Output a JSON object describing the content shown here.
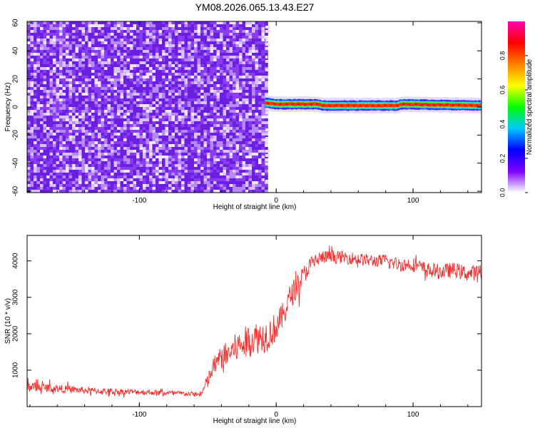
{
  "title": "YM08.2026.065.13.43.E27",
  "chart_data": [
    {
      "type": "heatmap",
      "xlabel": "Height of straight line (km)",
      "ylabel": "Frequency (Hz)",
      "xlim": [
        -182,
        150
      ],
      "ylim": [
        -61,
        61
      ],
      "xticks": [
        -100,
        0,
        100
      ],
      "xtick_labels": [
        "-100",
        "0",
        "100"
      ],
      "yticks": [
        -60,
        -40,
        -20,
        0,
        20,
        40,
        60
      ],
      "ytick_labels": [
        "-60",
        "-40",
        "-20",
        "0",
        "20",
        "40",
        "60"
      ],
      "noise_region_x": [
        -182,
        -8
      ],
      "signal_track": [
        {
          "x": -8,
          "y": 3
        },
        {
          "x": 0,
          "y": 2
        },
        {
          "x": 30,
          "y": 2
        },
        {
          "x": 35,
          "y": 1
        },
        {
          "x": 88,
          "y": 1
        },
        {
          "x": 92,
          "y": 2
        },
        {
          "x": 150,
          "y": 1
        }
      ],
      "colorbar": {
        "label": "Normalized spectral amplitude",
        "range": [
          0,
          1
        ],
        "ticks": [
          0.0,
          0.2,
          0.4,
          0.6,
          0.8
        ],
        "tick_labels": [
          "0.0",
          "0.2",
          "0.4",
          "0.6",
          "0.8"
        ],
        "colors": [
          "#ffffff",
          "#7f00ff",
          "#0000ff",
          "#00c8ff",
          "#00ff00",
          "#ffff00",
          "#ff8000",
          "#ff0000",
          "#ff00b0"
        ]
      },
      "grid": false
    },
    {
      "type": "line",
      "xlabel": "Height of straight line (km)",
      "ylabel": "SNR (10 * v/v)",
      "xlim": [
        -182,
        150
      ],
      "ylim": [
        0,
        4700
      ],
      "xticks": [
        -100,
        0,
        100
      ],
      "xtick_labels": [
        "-100",
        "0",
        "100"
      ],
      "yticks": [
        1000,
        2000,
        3000,
        4000
      ],
      "ytick_labels": [
        "1000",
        "2000",
        "3000",
        "4000"
      ],
      "color": "#f03030",
      "series": [
        {
          "x": [
            -182,
            -170,
            -150,
            -130,
            -110,
            -90,
            -70,
            -55,
            -50,
            -45,
            -40,
            -35,
            -30,
            -25,
            -20,
            -15,
            -10,
            -5,
            0,
            5,
            10,
            15,
            20,
            25,
            30,
            35,
            40,
            50,
            60,
            70,
            80,
            90,
            100,
            110,
            120,
            130,
            140,
            150
          ],
          "y": [
            550,
            520,
            470,
            420,
            410,
            390,
            360,
            330,
            700,
            1150,
            1350,
            1450,
            1600,
            1700,
            1800,
            1900,
            1900,
            2000,
            2200,
            2500,
            3000,
            3300,
            3600,
            3900,
            4050,
            4100,
            4100,
            4100,
            4050,
            4000,
            4000,
            3900,
            3900,
            3750,
            3700,
            3750,
            3650,
            3700
          ],
          "spread": [
            300,
            250,
            200,
            180,
            160,
            150,
            140,
            130,
            450,
            550,
            650,
            750,
            800,
            900,
            900,
            900,
            900,
            900,
            800,
            750,
            700,
            650,
            550,
            450,
            400,
            380,
            350,
            350,
            350,
            350,
            350,
            380,
            400,
            420,
            420,
            420,
            420,
            420
          ]
        }
      ],
      "grid": false
    }
  ]
}
